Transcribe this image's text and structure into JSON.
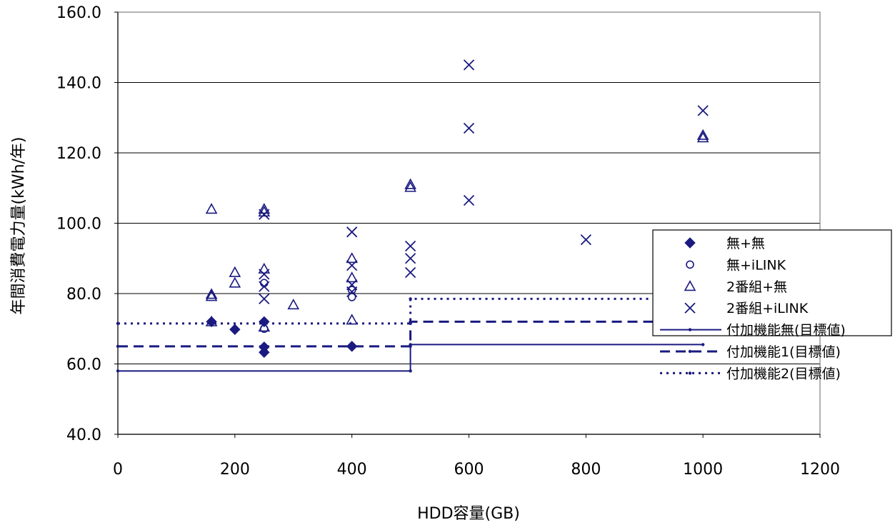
{
  "chart_data": {
    "type": "scatter",
    "title": "",
    "xlabel": "HDD容量(GB)",
    "ylabel": "年間消費電力量(kWh/年)",
    "xlim": [
      0,
      1200
    ],
    "ylim": [
      40,
      160
    ],
    "x_ticks": [
      "0",
      "200",
      "400",
      "600",
      "800",
      "1000",
      "1200"
    ],
    "y_ticks": [
      "40.0",
      "60.0",
      "80.0",
      "100.0",
      "120.0",
      "140.0",
      "160.0"
    ],
    "grid": "horizontal",
    "legend_position": "right",
    "colors": {
      "series": "#1a1a80",
      "grid": "#000000"
    },
    "series": [
      {
        "name": "無+無",
        "marker": "diamond",
        "points": [
          [
            160,
            72.0
          ],
          [
            200,
            69.8
          ],
          [
            250,
            72.0
          ],
          [
            250,
            64.8
          ],
          [
            250,
            63.3
          ],
          [
            400,
            65.0
          ]
        ]
      },
      {
        "name": "無+iLINK",
        "marker": "circle",
        "points": [
          [
            250,
            70.0
          ],
          [
            250,
            83.0
          ],
          [
            400,
            79.0
          ],
          [
            400,
            81.0
          ]
        ]
      },
      {
        "name": "2番組+無",
        "marker": "triangle",
        "points": [
          [
            160,
            104.0
          ],
          [
            160,
            79.8
          ],
          [
            160,
            79.2
          ],
          [
            160,
            72.0
          ],
          [
            200,
            86.0
          ],
          [
            200,
            83.0
          ],
          [
            250,
            104.0
          ],
          [
            250,
            103.2
          ],
          [
            250,
            87.0
          ],
          [
            250,
            70.5
          ],
          [
            300,
            76.8
          ],
          [
            400,
            90.0
          ],
          [
            400,
            84.5
          ],
          [
            400,
            72.5
          ],
          [
            500,
            111.0
          ],
          [
            500,
            110.2
          ],
          [
            1000,
            125.0
          ],
          [
            1000,
            124.3
          ]
        ]
      },
      {
        "name": "2番組+iLINK",
        "marker": "x",
        "points": [
          [
            250,
            102.5
          ],
          [
            250,
            85.5
          ],
          [
            250,
            82.0
          ],
          [
            250,
            78.5
          ],
          [
            400,
            97.5
          ],
          [
            400,
            88.0
          ],
          [
            400,
            82.5
          ],
          [
            400,
            80.5
          ],
          [
            500,
            93.5
          ],
          [
            500,
            90.0
          ],
          [
            500,
            86.0
          ],
          [
            600,
            145.0
          ],
          [
            600,
            127.0
          ],
          [
            600,
            106.5
          ],
          [
            800,
            95.3
          ],
          [
            1000,
            132.0
          ]
        ]
      },
      {
        "name": "付加機能無(目標値)",
        "line": "solid",
        "points": [
          [
            0,
            58.0
          ],
          [
            500,
            58.0
          ],
          [
            500,
            65.5
          ],
          [
            1000,
            65.5
          ]
        ]
      },
      {
        "name": "付加機能1(目標値)",
        "line": "dashed",
        "points": [
          [
            0,
            65.0
          ],
          [
            500,
            65.0
          ],
          [
            500,
            72.0
          ],
          [
            1000,
            72.0
          ]
        ]
      },
      {
        "name": "付加機能2(目標値)",
        "line": "dotted",
        "points": [
          [
            0,
            71.5
          ],
          [
            500,
            71.5
          ],
          [
            500,
            78.5
          ],
          [
            1000,
            78.5
          ]
        ]
      }
    ]
  }
}
